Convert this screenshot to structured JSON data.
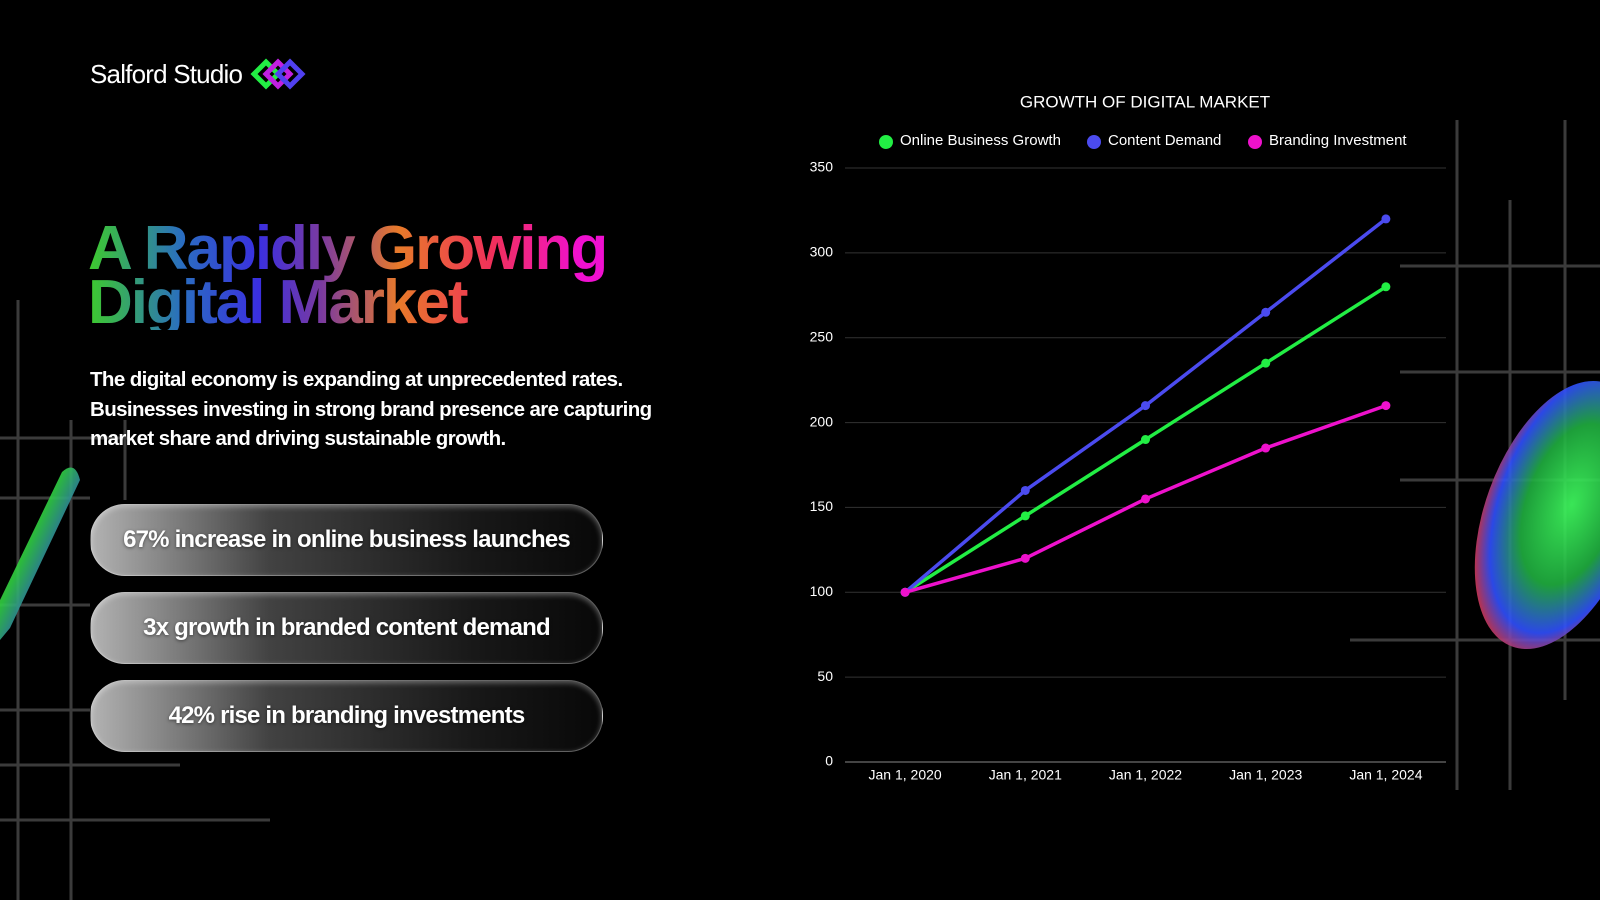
{
  "header": {
    "brand": "Salford Studio"
  },
  "headline": [
    "A Rapidly Growing",
    "Digital Market"
  ],
  "body": "The digital economy is expanding at unprecedented rates. Businesses investing in strong brand presence are capturing market share and driving sustainable growth.",
  "stats": [
    "67% increase in online business launches",
    "3x growth in branded content demand",
    "42% rise in branding investments"
  ],
  "chart_data": {
    "type": "line",
    "title": "GROWTH OF DIGITAL MARKET",
    "categories": [
      "Jan 1, 2020",
      "Jan 1, 2021",
      "Jan 1, 2022",
      "Jan 1, 2023",
      "Jan 1, 2024"
    ],
    "series": [
      {
        "name": "Online Business Growth",
        "color": "#22ee44",
        "values": [
          100,
          145,
          190,
          235,
          280
        ]
      },
      {
        "name": "Content Demand",
        "color": "#4b4bef",
        "values": [
          100,
          160,
          210,
          265,
          320
        ]
      },
      {
        "name": "Branding Investment",
        "color": "#ee11cc",
        "values": [
          100,
          120,
          155,
          185,
          210
        ]
      }
    ],
    "ylim": [
      0,
      350
    ],
    "yticks": [
      0,
      50,
      100,
      150,
      200,
      250,
      300,
      350
    ],
    "grid": true,
    "legend": "top"
  }
}
